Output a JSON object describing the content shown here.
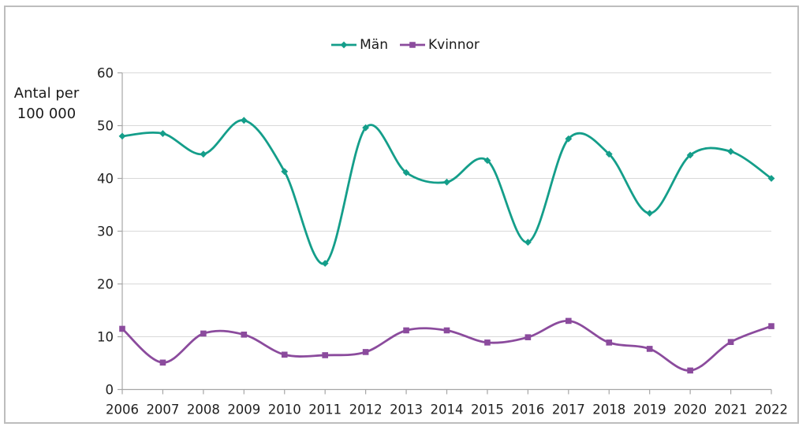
{
  "chart_data": {
    "type": "line",
    "title": "",
    "ylabel": "Antal per\n100 000",
    "xlabel": "",
    "categories": [
      "2006",
      "2007",
      "2008",
      "2009",
      "2010",
      "2011",
      "2012",
      "2013",
      "2014",
      "2015",
      "2016",
      "2017",
      "2018",
      "2019",
      "2020",
      "2021",
      "2022"
    ],
    "series": [
      {
        "name": "Män",
        "marker": "diamond",
        "color": "#149e8a",
        "values": [
          48.0,
          48.5,
          44.6,
          51.0,
          41.3,
          23.9,
          49.6,
          41.1,
          39.3,
          43.4,
          27.9,
          47.5,
          44.6,
          33.4,
          44.4,
          45.1,
          40.0
        ]
      },
      {
        "name": "Kvinnor",
        "marker": "square",
        "color": "#8b4b9d",
        "values": [
          11.5,
          5.1,
          10.6,
          10.4,
          6.6,
          6.5,
          7.1,
          11.2,
          11.2,
          8.9,
          9.9,
          13.0,
          8.9,
          7.7,
          3.6,
          9.0,
          12.0
        ]
      }
    ],
    "ylim": [
      0,
      60
    ],
    "yticks": [
      0,
      10,
      20,
      30,
      40,
      50,
      60
    ],
    "grid": true,
    "legend_position": "top-center",
    "smooth_lines": true,
    "colors": {
      "grid": "#d9d9d9",
      "axis": "#a6a6a6",
      "tick_text": "#1f1f1f",
      "frame": "#bdbdbd",
      "background": "#ffffff"
    }
  }
}
